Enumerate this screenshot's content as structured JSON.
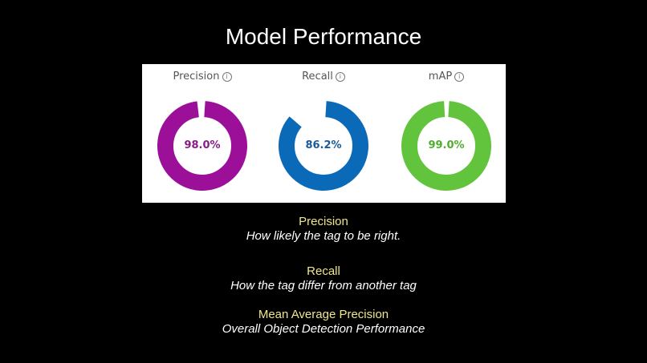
{
  "slide": {
    "title": "Model Performance"
  },
  "metrics": [
    {
      "label": "Precision",
      "value_text": "98.0%",
      "value": 98.0,
      "color": "#9b0f99",
      "text_color": "#8b1a89",
      "info_icon": "info-icon"
    },
    {
      "label": "Recall",
      "value_text": "86.2%",
      "value": 86.2,
      "color": "#0a6ab8",
      "text_color": "#1a5a9a",
      "info_icon": "info-icon"
    },
    {
      "label": "mAP",
      "value_text": "99.0%",
      "value": 99.0,
      "color": "#62c43c",
      "text_color": "#4fae2c",
      "info_icon": "info-icon"
    }
  ],
  "captions": [
    {
      "term": "Precision",
      "description": "How likely the tag to be right."
    },
    {
      "term": "Recall",
      "description": "How the tag differ from another tag"
    },
    {
      "term": "Mean Average Precision",
      "description": "Overall Object Detection Performance"
    }
  ],
  "colors": {
    "background": "#000000",
    "caption_term": "#f0e68c",
    "caption_description": "#ffffff",
    "panel": "#ffffff"
  }
}
